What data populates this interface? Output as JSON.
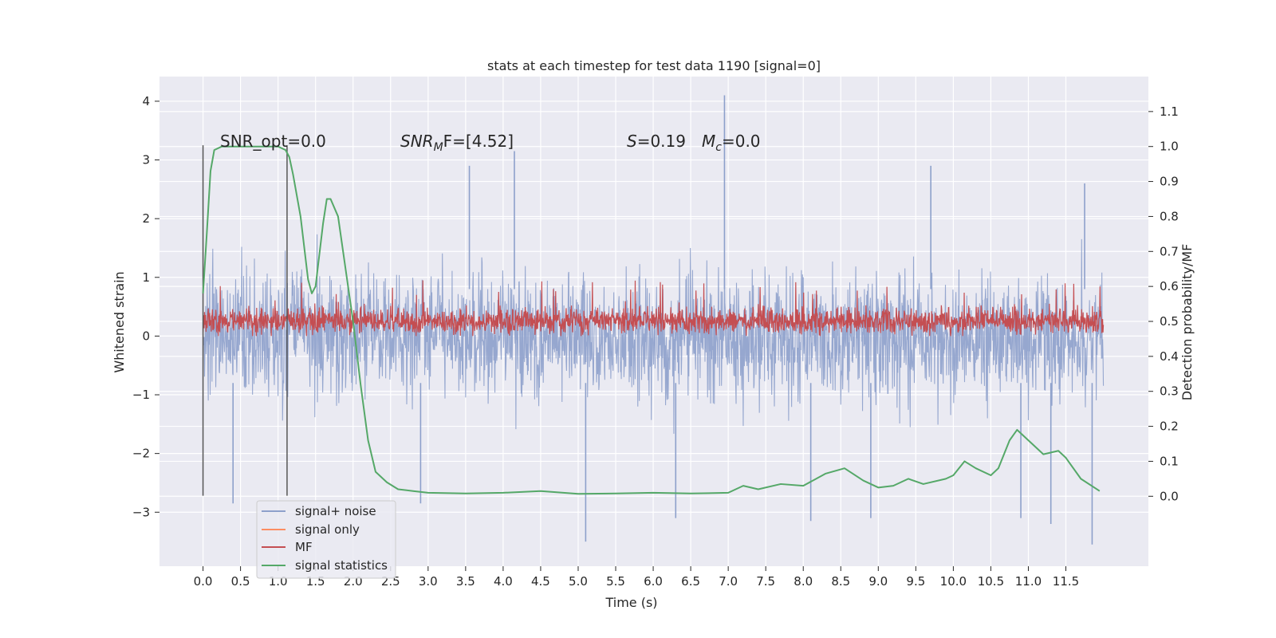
{
  "chart_data": {
    "type": "line",
    "title": "stats at each timestep for test data 1190 [signal=0]",
    "xlabel": "Time (s)",
    "ylabel_left": "Whitened strain",
    "ylabel_right": "Detection probability/MF",
    "xlim": [
      -0.58,
      12.6
    ],
    "ylim_left": [
      -3.92,
      4.42
    ],
    "ylim_right": [
      -0.2,
      1.2
    ],
    "x_ticks": [
      "0.0",
      "0.5",
      "1.0",
      "1.5",
      "2.0",
      "2.5",
      "3.0",
      "3.5",
      "4.0",
      "4.5",
      "5.0",
      "5.5",
      "6.0",
      "6.5",
      "7.0",
      "7.5",
      "8.0",
      "8.5",
      "9.0",
      "9.5",
      "10.0",
      "10.5",
      "11.0",
      "11.5"
    ],
    "y_left_ticks": [
      "4",
      "3",
      "2",
      "1",
      "0",
      "−1",
      "−2",
      "−3"
    ],
    "y_right_ticks": [
      "1.1",
      "1.0",
      "0.9",
      "0.8",
      "0.7",
      "0.6",
      "0.5",
      "0.4",
      "0.3",
      "0.2",
      "0.1",
      "0.0"
    ],
    "grid": true,
    "background": "#eaeaf2",
    "annotations": {
      "snr_opt": "SNR_opt=0.0",
      "snr_mf_main": "SNR",
      "snr_mf_sub": "M",
      "snr_mf_rest": "F=[4.52]",
      "s_sym": "S",
      "s_val": "=0.19",
      "mc_sym": "M",
      "mc_sub": "c",
      "mc_val": "=0.0"
    },
    "vertical_markers": [
      0.0,
      1.12
    ],
    "series": [
      {
        "name": "signal+ noise",
        "color": "#8da0cb",
        "axis": "left",
        "x_range": [
          0.0,
          12.0
        ],
        "typical_range": [
          -2.2,
          2.1
        ],
        "peaks": [
          {
            "x": 0.4,
            "y": -2.85
          },
          {
            "x": 2.9,
            "y": -2.85
          },
          {
            "x": 3.55,
            "y": 2.9
          },
          {
            "x": 4.15,
            "y": 3.15
          },
          {
            "x": 5.1,
            "y": -3.5
          },
          {
            "x": 6.3,
            "y": -3.1
          },
          {
            "x": 6.95,
            "y": 4.1
          },
          {
            "x": 8.1,
            "y": -3.15
          },
          {
            "x": 8.9,
            "y": -3.1
          },
          {
            "x": 9.7,
            "y": 2.9
          },
          {
            "x": 10.9,
            "y": -3.1
          },
          {
            "x": 11.3,
            "y": -3.2
          },
          {
            "x": 11.85,
            "y": -3.55
          },
          {
            "x": 11.75,
            "y": 2.6
          }
        ]
      },
      {
        "name": "signal only",
        "color": "#fc8d62",
        "axis": "left",
        "values": []
      },
      {
        "name": "MF",
        "color": "#c44e52",
        "axis": "left",
        "x_range": [
          0.0,
          12.0
        ],
        "typical_range": [
          0.0,
          0.7
        ]
      },
      {
        "name": "signal statistics",
        "color": "#55a868",
        "axis": "right",
        "x": [
          0.0,
          0.05,
          0.1,
          0.15,
          0.25,
          0.5,
          0.8,
          1.0,
          1.1,
          1.15,
          1.2,
          1.3,
          1.4,
          1.45,
          1.5,
          1.6,
          1.65,
          1.7,
          1.8,
          1.9,
          2.0,
          2.1,
          2.2,
          2.3,
          2.45,
          2.6,
          2.8,
          3.0,
          3.5,
          4.0,
          4.5,
          5.0,
          5.5,
          6.0,
          6.5,
          7.0,
          7.2,
          7.4,
          7.7,
          8.0,
          8.3,
          8.55,
          8.8,
          9.0,
          9.2,
          9.4,
          9.6,
          9.9,
          10.0,
          10.15,
          10.3,
          10.5,
          10.6,
          10.75,
          10.85,
          11.0,
          11.2,
          11.4,
          11.5,
          11.7,
          11.95
        ],
        "y": [
          0.58,
          0.75,
          0.93,
          0.99,
          1.0,
          1.0,
          1.0,
          1.0,
          0.99,
          0.97,
          0.92,
          0.8,
          0.62,
          0.58,
          0.6,
          0.78,
          0.85,
          0.85,
          0.8,
          0.65,
          0.5,
          0.32,
          0.16,
          0.07,
          0.04,
          0.02,
          0.015,
          0.01,
          0.008,
          0.01,
          0.015,
          0.007,
          0.008,
          0.01,
          0.008,
          0.01,
          0.03,
          0.02,
          0.035,
          0.03,
          0.065,
          0.08,
          0.045,
          0.025,
          0.03,
          0.05,
          0.035,
          0.05,
          0.06,
          0.1,
          0.08,
          0.06,
          0.08,
          0.16,
          0.19,
          0.16,
          0.12,
          0.13,
          0.11,
          0.05,
          0.015
        ]
      }
    ]
  }
}
